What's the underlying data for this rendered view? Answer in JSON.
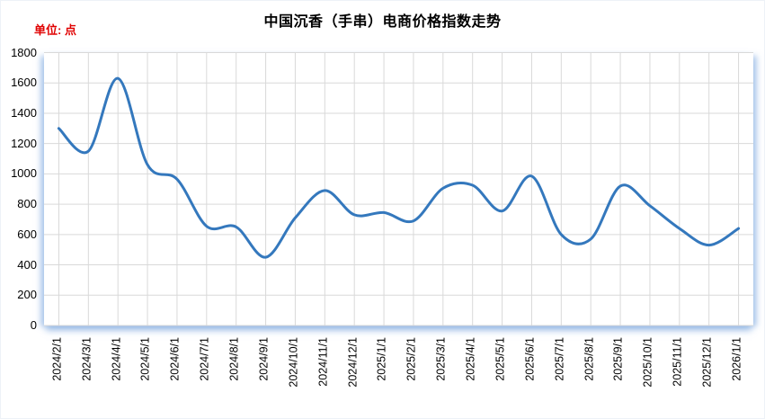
{
  "header": {
    "title": "中国沉香（手串）电商价格指数走势",
    "unit_label": "单位: 点"
  },
  "colors": {
    "line": "#3478BD",
    "grid": "#D9D9D9",
    "unit_label": "#E00000",
    "title_text": "#000000",
    "plot_glow": "#8EB4E3"
  },
  "chart_data": {
    "type": "line",
    "title": "中国沉香（手串）电商价格指数走势",
    "unit": "点",
    "smooth": true,
    "legend": "none",
    "grid": "both",
    "xlabel": "",
    "ylabel": "",
    "ylim": [
      0,
      1800
    ],
    "yticks": [
      0,
      200,
      400,
      600,
      800,
      1000,
      1200,
      1400,
      1600,
      1800
    ],
    "categories": [
      "2024/2/1",
      "2024/3/1",
      "2024/4/1",
      "2024/5/1",
      "2024/6/1",
      "2024/7/1",
      "2024/8/1",
      "2024/9/1",
      "2024/10/1",
      "2024/11/1",
      "2024/12/1",
      "2025/1/1",
      "2025/2/1",
      "2025/3/1",
      "2025/4/1",
      "2025/5/1",
      "2025/6/1",
      "2025/7/1",
      "2025/8/1",
      "2025/9/1",
      "2025/10/1",
      "2025/11/1",
      "2025/12/1",
      "2026/1/1"
    ],
    "values": [
      1300,
      1150,
      1630,
      1060,
      965,
      655,
      650,
      450,
      710,
      890,
      730,
      745,
      690,
      905,
      925,
      755,
      985,
      600,
      570,
      920,
      790,
      640,
      530,
      640
    ]
  }
}
